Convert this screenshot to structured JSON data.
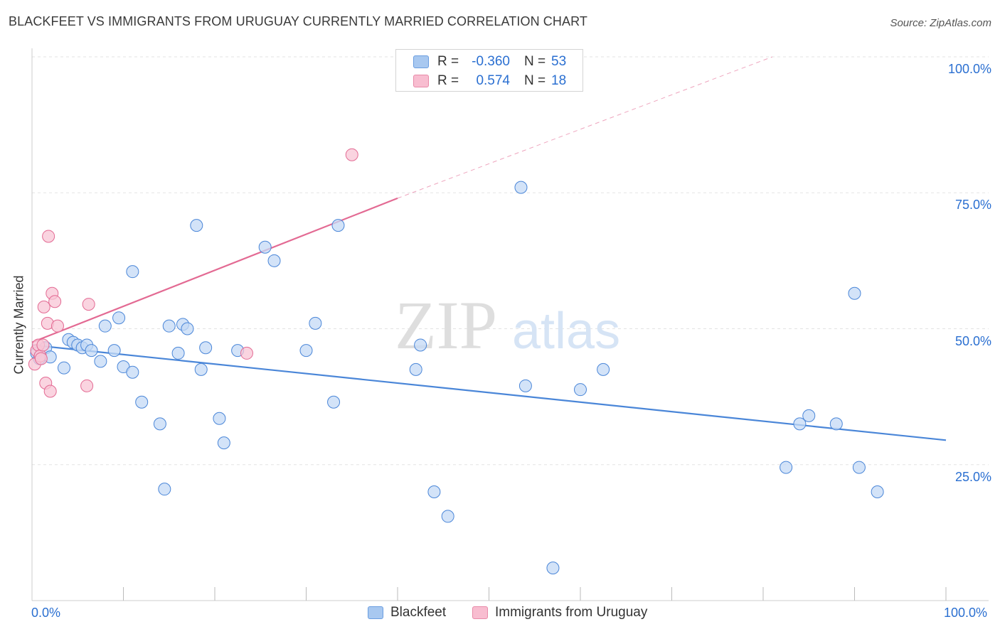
{
  "header": {
    "title": "BLACKFEET VS IMMIGRANTS FROM URUGUAY CURRENTLY MARRIED CORRELATION CHART",
    "source": "Source: ZipAtlas.com"
  },
  "watermark": {
    "zip": "ZIP",
    "atlas": "atlas"
  },
  "legend": {
    "rows": [
      {
        "r_label": "R =",
        "r_value": "-0.360",
        "n_label": "N =",
        "n_value": "53",
        "color": "#a8c8f0",
        "border": "#6a9de0"
      },
      {
        "r_label": "R =",
        "r_value": "0.574",
        "n_label": "N =",
        "n_value": "18",
        "color": "#f8bdd0",
        "border": "#e88aa8"
      }
    ]
  },
  "bottom_legend": {
    "items": [
      {
        "label": "Blackfeet",
        "color": "#a8c8f0",
        "border": "#6a9de0"
      },
      {
        "label": "Immigrants from Uruguay",
        "color": "#f8bdd0",
        "border": "#e88aa8"
      }
    ]
  },
  "axes": {
    "y_title": "Currently Married",
    "x_min_label": "0.0%",
    "x_max_label": "100.0%",
    "y_ticks": [
      "100.0%",
      "75.0%",
      "50.0%",
      "25.0%"
    ]
  },
  "chart_data": {
    "type": "scatter",
    "xlabel": "",
    "ylabel": "Currently Married",
    "xlim": [
      0,
      100
    ],
    "ylim": [
      0,
      100
    ],
    "y_ticks": [
      100,
      75,
      50,
      25
    ],
    "grid": true,
    "series": [
      {
        "name": "Blackfeet",
        "color": "#4a86d8",
        "fill": "#c4daf5",
        "points": [
          [
            0.5,
            45.5
          ],
          [
            0.8,
            44.5
          ],
          [
            1.5,
            46.5
          ],
          [
            2,
            44.8
          ],
          [
            3.5,
            42.8
          ],
          [
            4,
            48
          ],
          [
            4.5,
            47.5
          ],
          [
            5,
            47
          ],
          [
            5.5,
            46.5
          ],
          [
            6,
            47
          ],
          [
            6.5,
            46
          ],
          [
            7.5,
            44
          ],
          [
            8,
            50.5
          ],
          [
            9,
            46
          ],
          [
            9.5,
            52
          ],
          [
            10,
            43
          ],
          [
            11,
            42
          ],
          [
            11,
            60.5
          ],
          [
            12,
            36.5
          ],
          [
            14,
            32.5
          ],
          [
            14.5,
            20.5
          ],
          [
            15,
            50.5
          ],
          [
            16,
            45.5
          ],
          [
            16.5,
            50.8
          ],
          [
            17,
            50
          ],
          [
            18,
            69
          ],
          [
            18.5,
            42.5
          ],
          [
            19,
            46.5
          ],
          [
            20.5,
            33.5
          ],
          [
            21,
            29
          ],
          [
            22.5,
            46
          ],
          [
            25.5,
            65
          ],
          [
            26.5,
            62.5
          ],
          [
            30,
            46
          ],
          [
            31,
            51
          ],
          [
            33,
            36.5
          ],
          [
            33.5,
            69
          ],
          [
            42,
            42.5
          ],
          [
            42.5,
            47
          ],
          [
            44,
            20
          ],
          [
            45.5,
            15.5
          ],
          [
            53.5,
            76
          ],
          [
            54,
            39.5
          ],
          [
            57,
            6
          ],
          [
            60,
            38.8
          ],
          [
            62.5,
            42.5
          ],
          [
            82.5,
            24.5
          ],
          [
            84,
            32.5
          ],
          [
            85,
            34
          ],
          [
            88,
            32.5
          ],
          [
            90,
            56.5
          ],
          [
            90.5,
            24.5
          ],
          [
            92.5,
            20
          ]
        ],
        "trend": [
          [
            0,
            47
          ],
          [
            100,
            29.5
          ]
        ]
      },
      {
        "name": "Immigrants from Uruguay",
        "color": "#e36a93",
        "fill": "#f8c6d6",
        "points": [
          [
            0.3,
            43.5
          ],
          [
            0.5,
            46
          ],
          [
            0.7,
            47
          ],
          [
            0.9,
            45
          ],
          [
            1,
            44.5
          ],
          [
            1.2,
            47
          ],
          [
            1.3,
            54
          ],
          [
            1.5,
            40
          ],
          [
            1.7,
            51
          ],
          [
            1.8,
            67
          ],
          [
            2,
            38.5
          ],
          [
            2.2,
            56.5
          ],
          [
            2.5,
            55
          ],
          [
            2.8,
            50.5
          ],
          [
            6,
            39.5
          ],
          [
            6.2,
            54.5
          ],
          [
            23.5,
            45.5
          ],
          [
            35,
            82
          ]
        ],
        "trend": [
          [
            0,
            47.5
          ],
          [
            40,
            74
          ]
        ],
        "trend_extension": [
          [
            40,
            74
          ],
          [
            81,
            101
          ]
        ]
      }
    ]
  }
}
